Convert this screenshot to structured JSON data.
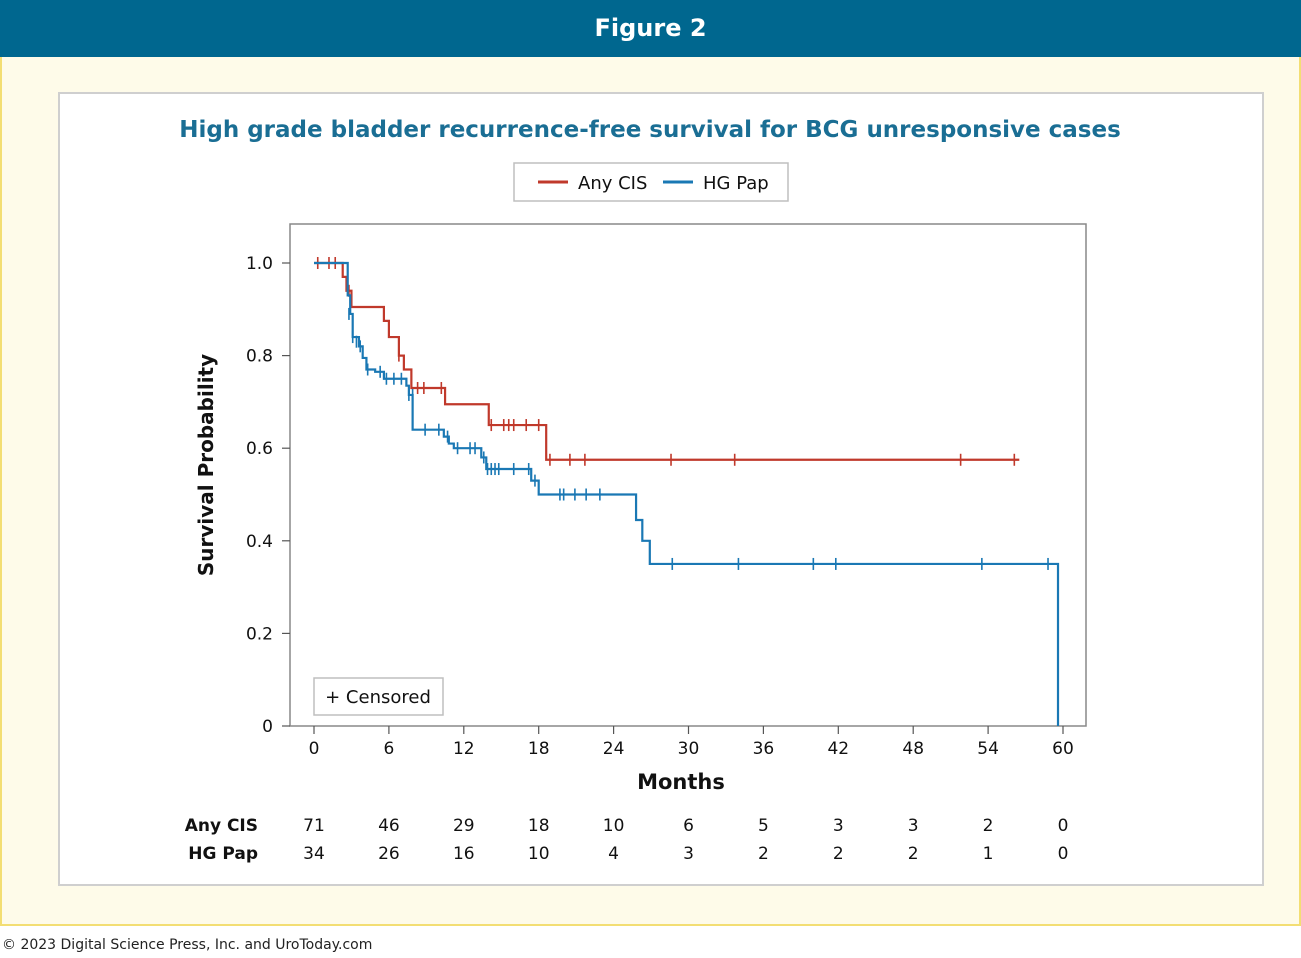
{
  "figure_label": "Figure 2",
  "copyright": "© 2023 Digital Science Press, Inc. and UroToday.com",
  "colors": {
    "header": "#00678f",
    "any_cis": "#c0392b",
    "hg_pap": "#1a78b4",
    "title": "#1a6e94"
  },
  "chart_data": {
    "type": "line",
    "title": "High grade bladder recurrence-free survival for BCG unresponsive cases",
    "xlabel": "Months",
    "ylabel": "Survival Probability",
    "xlim": [
      -2,
      62
    ],
    "ylim": [
      0,
      1.08
    ],
    "xticks": [
      0,
      6,
      12,
      18,
      24,
      30,
      36,
      42,
      48,
      54,
      60
    ],
    "yticks": [
      {
        "value": 0,
        "label": "0"
      },
      {
        "value": 0.2,
        "label": "0.2"
      },
      {
        "value": 0.4,
        "label": "0.4"
      },
      {
        "value": 0.6,
        "label": "0.6"
      },
      {
        "value": 0.8,
        "label": "0.8"
      },
      {
        "value": 1.0,
        "label": "1.0"
      }
    ],
    "censored_label": "+ Censored",
    "series": [
      {
        "name": "Any CIS",
        "color": "#c0392b",
        "steps": [
          [
            0,
            1.0
          ],
          [
            2.3,
            0.97
          ],
          [
            2.6,
            0.94
          ],
          [
            3.0,
            0.905
          ],
          [
            5.6,
            0.875
          ],
          [
            6.0,
            0.84
          ],
          [
            6.8,
            0.8
          ],
          [
            7.2,
            0.77
          ],
          [
            7.8,
            0.73
          ],
          [
            10.5,
            0.695
          ],
          [
            14.0,
            0.65
          ],
          [
            18.6,
            0.575
          ],
          [
            56.5,
            0.575
          ]
        ],
        "censored": [
          [
            0.3,
            1.0
          ],
          [
            1.2,
            1.0
          ],
          [
            1.7,
            1.0
          ],
          [
            2.8,
            0.94
          ],
          [
            6.8,
            0.8
          ],
          [
            8.3,
            0.73
          ],
          [
            8.8,
            0.73
          ],
          [
            10.2,
            0.73
          ],
          [
            14.2,
            0.65
          ],
          [
            15.2,
            0.65
          ],
          [
            15.6,
            0.65
          ],
          [
            16.0,
            0.65
          ],
          [
            17.0,
            0.65
          ],
          [
            18.0,
            0.65
          ],
          [
            18.9,
            0.575
          ],
          [
            20.5,
            0.575
          ],
          [
            21.7,
            0.575
          ],
          [
            28.6,
            0.575
          ],
          [
            33.7,
            0.575
          ],
          [
            51.8,
            0.575
          ],
          [
            56.1,
            0.575
          ]
        ]
      },
      {
        "name": "HG Pap",
        "color": "#1a78b4",
        "steps": [
          [
            0,
            1.0
          ],
          [
            2.7,
            0.93
          ],
          [
            2.9,
            0.89
          ],
          [
            3.1,
            0.84
          ],
          [
            3.6,
            0.82
          ],
          [
            3.9,
            0.795
          ],
          [
            4.2,
            0.77
          ],
          [
            4.9,
            0.765
          ],
          [
            5.6,
            0.75
          ],
          [
            7.4,
            0.735
          ],
          [
            7.6,
            0.715
          ],
          [
            7.9,
            0.64
          ],
          [
            10.4,
            0.625
          ],
          [
            10.8,
            0.61
          ],
          [
            11.2,
            0.6
          ],
          [
            13.4,
            0.58
          ],
          [
            13.8,
            0.555
          ],
          [
            17.4,
            0.53
          ],
          [
            18.0,
            0.5
          ],
          [
            25.8,
            0.445
          ],
          [
            26.3,
            0.4
          ],
          [
            26.9,
            0.35
          ],
          [
            59.6,
            0.35
          ],
          [
            59.6,
            0.0
          ]
        ],
        "censored": [
          [
            2.8,
            0.89
          ],
          [
            3.1,
            0.84
          ],
          [
            3.4,
            0.83
          ],
          [
            3.7,
            0.82
          ],
          [
            4.3,
            0.77
          ],
          [
            5.3,
            0.765
          ],
          [
            5.8,
            0.75
          ],
          [
            6.4,
            0.75
          ],
          [
            7.0,
            0.75
          ],
          [
            7.6,
            0.715
          ],
          [
            7.9,
            0.715
          ],
          [
            8.9,
            0.64
          ],
          [
            10.0,
            0.64
          ],
          [
            10.7,
            0.625
          ],
          [
            11.5,
            0.6
          ],
          [
            12.5,
            0.6
          ],
          [
            12.9,
            0.6
          ],
          [
            13.6,
            0.58
          ],
          [
            13.9,
            0.555
          ],
          [
            14.2,
            0.555
          ],
          [
            14.5,
            0.555
          ],
          [
            14.8,
            0.555
          ],
          [
            16.0,
            0.555
          ],
          [
            17.2,
            0.555
          ],
          [
            17.7,
            0.53
          ],
          [
            19.7,
            0.5
          ],
          [
            20.0,
            0.5
          ],
          [
            20.9,
            0.5
          ],
          [
            21.8,
            0.5
          ],
          [
            22.9,
            0.5
          ],
          [
            28.7,
            0.35
          ],
          [
            34.0,
            0.35
          ],
          [
            40.0,
            0.35
          ],
          [
            41.8,
            0.35
          ],
          [
            53.5,
            0.35
          ],
          [
            58.8,
            0.35
          ]
        ]
      }
    ],
    "risk_table": {
      "times": [
        0,
        6,
        12,
        18,
        24,
        30,
        36,
        42,
        48,
        54,
        60
      ],
      "rows": [
        {
          "label": "Any CIS",
          "counts": [
            71,
            46,
            29,
            18,
            10,
            6,
            5,
            3,
            3,
            2,
            0
          ]
        },
        {
          "label": "HG Pap",
          "counts": [
            34,
            26,
            16,
            10,
            4,
            3,
            2,
            2,
            2,
            1,
            0
          ]
        }
      ]
    }
  }
}
